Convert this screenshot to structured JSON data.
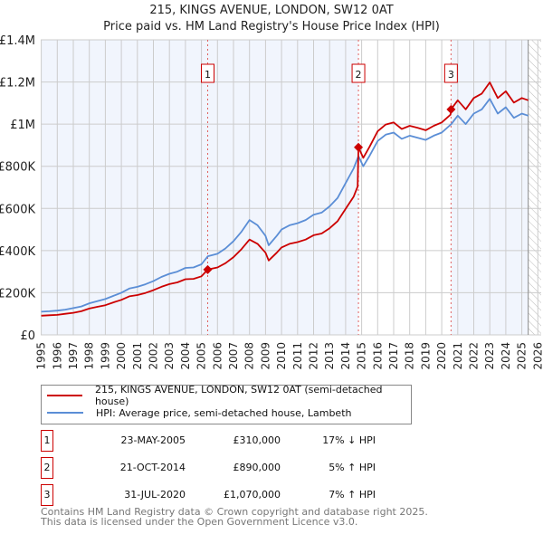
{
  "title": "215, KINGS AVENUE, LONDON, SW12 0AT",
  "subtitle": "Price paid vs. HM Land Registry's House Price Index (HPI)",
  "chart_data": {
    "type": "line",
    "title": "215, KINGS AVENUE, LONDON, SW12 0AT",
    "subtitle": "Price paid vs. HM Land Registry's House Price Index (HPI)",
    "xlabel": "",
    "ylabel": "",
    "xlim": [
      1995,
      2026
    ],
    "ylim": [
      0,
      1400000
    ],
    "x_ticks": [
      1995,
      1996,
      1997,
      1998,
      1999,
      2000,
      2001,
      2002,
      2003,
      2004,
      2005,
      2006,
      2007,
      2008,
      2009,
      2010,
      2011,
      2012,
      2013,
      2014,
      2015,
      2016,
      2017,
      2018,
      2019,
      2020,
      2021,
      2022,
      2023,
      2024,
      2025,
      2026
    ],
    "y_ticks": [
      {
        "value": 0,
        "label": "£0"
      },
      {
        "value": 200000,
        "label": "£200K"
      },
      {
        "value": 400000,
        "label": "£400K"
      },
      {
        "value": 600000,
        "label": "£600K"
      },
      {
        "value": 800000,
        "label": "£800K"
      },
      {
        "value": 1000000,
        "label": "£1M"
      },
      {
        "value": 1200000,
        "label": "£1.2M"
      },
      {
        "value": 1400000,
        "label": "£1.4M"
      }
    ],
    "grid": true,
    "legend_position": "below",
    "series": [
      {
        "name": "215, KINGS AVENUE, LONDON, SW12 0AT (semi-detached house)",
        "color": "#cc0000",
        "x": [
          1995,
          1995.5,
          1996,
          1996.5,
          1997,
          1997.5,
          1998,
          1998.5,
          1999,
          1999.5,
          2000,
          2000.5,
          2001,
          2001.5,
          2002,
          2002.5,
          2003,
          2003.5,
          2004,
          2004.5,
          2005,
          2005.4,
          2006,
          2006.5,
          2007,
          2007.5,
          2008,
          2008.5,
          2009,
          2009.2,
          2009.7,
          2010,
          2010.5,
          2011,
          2011.5,
          2012,
          2012.5,
          2013,
          2013.5,
          2014,
          2014.5,
          2014.75,
          2014.8,
          2015.1,
          2015.5,
          2016,
          2016.5,
          2017,
          2017.5,
          2018,
          2018.5,
          2019,
          2019.5,
          2020,
          2020.55,
          2020.58,
          2021,
          2021.5,
          2022,
          2022.5,
          2023,
          2023.5,
          2024,
          2024.5,
          2025,
          2025.4
        ],
        "y": [
          91000,
          93000,
          95000,
          100000,
          105000,
          112000,
          125000,
          133000,
          141000,
          154000,
          166000,
          183000,
          189000,
          199000,
          212000,
          228000,
          241000,
          249000,
          264000,
          266000,
          278000,
          310000,
          320000,
          340000,
          369000,
          407000,
          452000,
          432000,
          390000,
          353000,
          390000,
          415000,
          432000,
          440000,
          452000,
          473000,
          481000,
          506000,
          540000,
          598000,
          656000,
          704000,
          890000,
          840000,
          893000,
          966000,
          998000,
          1008000,
          977000,
          992000,
          982000,
          971000,
          992000,
          1008000,
          1045000,
          1070000,
          1113000,
          1070000,
          1124000,
          1145000,
          1198000,
          1124000,
          1156000,
          1102000,
          1124000,
          1113000
        ]
      },
      {
        "name": "HPI: Average price, semi-detached house, Lambeth",
        "color": "#5b8ed6",
        "x": [
          1995,
          1995.5,
          1996,
          1996.5,
          1997,
          1997.5,
          1998,
          1998.5,
          1999,
          1999.5,
          2000,
          2000.5,
          2001,
          2001.5,
          2002,
          2002.5,
          2003,
          2003.5,
          2004,
          2004.5,
          2005,
          2005.4,
          2006,
          2006.5,
          2007,
          2007.5,
          2008,
          2008.5,
          2009,
          2009.2,
          2009.7,
          2010,
          2010.5,
          2011,
          2011.5,
          2012,
          2012.5,
          2013,
          2013.5,
          2014,
          2014.5,
          2014.8,
          2015.1,
          2015.5,
          2016,
          2016.5,
          2017,
          2017.5,
          2018,
          2018.5,
          2019,
          2019.5,
          2020,
          2020.6,
          2021,
          2021.5,
          2022,
          2022.5,
          2023,
          2023.5,
          2024,
          2024.5,
          2025,
          2025.4
        ],
        "y": [
          110000,
          112000,
          115000,
          120000,
          127000,
          135000,
          150000,
          160000,
          170000,
          185000,
          200000,
          220000,
          228000,
          240000,
          255000,
          275000,
          290000,
          300000,
          318000,
          320000,
          335000,
          373000,
          385000,
          410000,
          445000,
          490000,
          545000,
          520000,
          470000,
          425000,
          470000,
          500000,
          520000,
          530000,
          545000,
          570000,
          580000,
          610000,
          650000,
          720000,
          790000,
          848000,
          800000,
          850000,
          920000,
          950000,
          960000,
          930000,
          945000,
          935000,
          925000,
          945000,
          960000,
          1000000,
          1040000,
          1000000,
          1050000,
          1070000,
          1120000,
          1050000,
          1080000,
          1030000,
          1050000,
          1040000
        ]
      }
    ],
    "sales": [
      {
        "id": "1",
        "x": 2005.39,
        "y": 310000,
        "date": "23-MAY-2005",
        "price": "£310,000",
        "hpi": "17% ↓ HPI"
      },
      {
        "id": "2",
        "x": 2014.8,
        "y": 890000,
        "date": "21-OCT-2014",
        "price": "£890,000",
        "hpi": "5% ↑ HPI"
      },
      {
        "id": "3",
        "x": 2020.58,
        "y": 1070000,
        "date": "31-JUL-2020",
        "price": "£1,070,000",
        "hpi": "7% ↑ HPI"
      }
    ],
    "shaded_ranges": [
      [
        1995,
        2014.8
      ],
      [
        2020.58,
        2025.4
      ]
    ],
    "forecast_hatch_from": 2025.4
  },
  "legend": {
    "property": "215, KINGS AVENUE, LONDON, SW12 0AT (semi-detached house)",
    "hpi": "HPI: Average price, semi-detached house, Lambeth"
  },
  "footer": {
    "line1": "Contains HM Land Registry data © Crown copyright and database right 2025.",
    "line2": "This data is licensed under the Open Government Licence v3.0."
  }
}
